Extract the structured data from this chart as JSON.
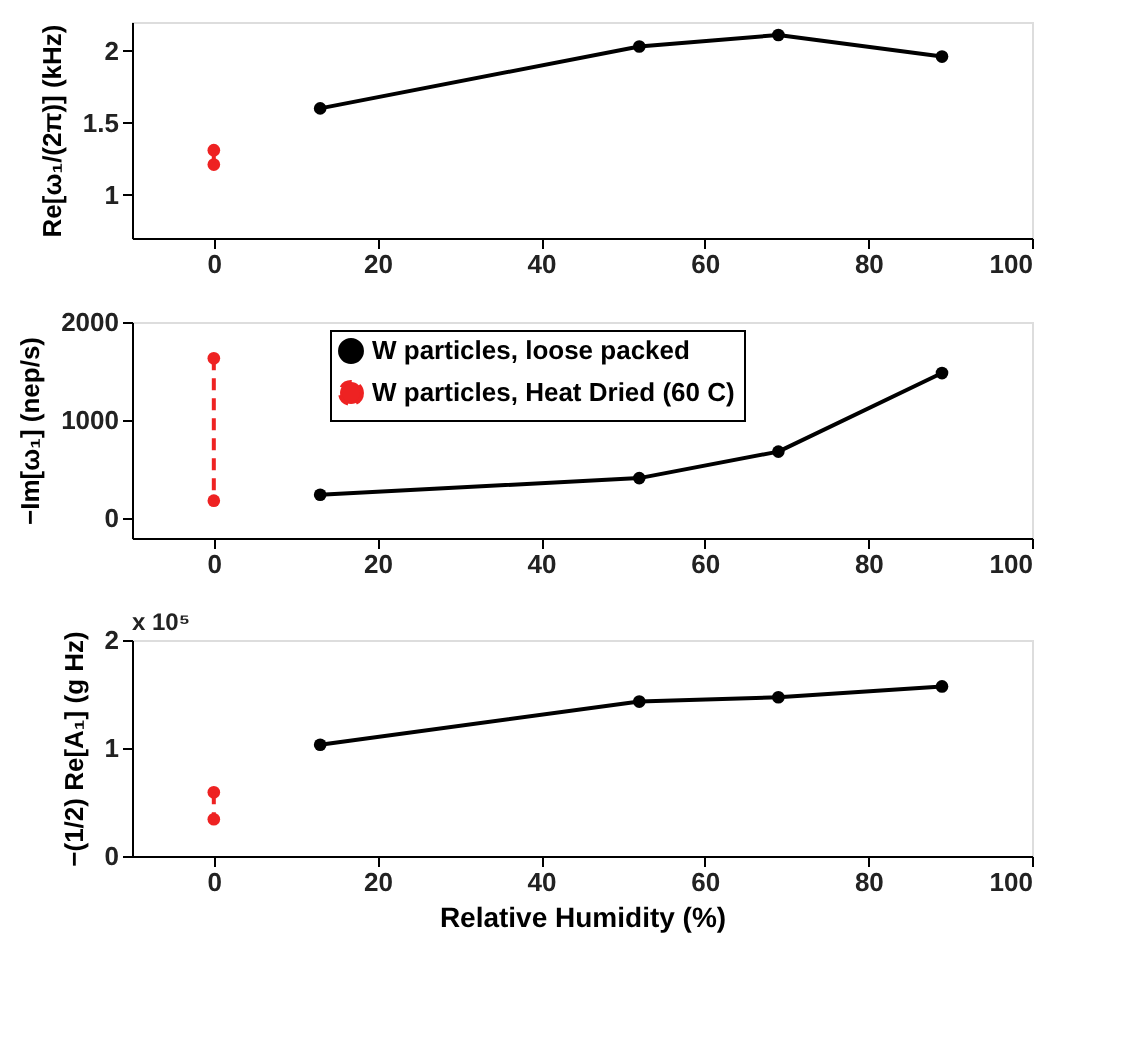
{
  "chart_data": [
    {
      "type": "line",
      "ylabel": "Re[ω₁/(2π)] (kHz)",
      "xlim": [
        -10,
        100
      ],
      "xticks": [
        0,
        20,
        40,
        60,
        80,
        100
      ],
      "ylim": [
        0.7,
        2.2
      ],
      "yticks": [
        1,
        1.5,
        2
      ],
      "grid": false,
      "legend": false,
      "marker": "circle",
      "series": [
        {
          "color": "#000000",
          "line_style": "solid",
          "x": [
            13,
            52,
            69,
            89
          ],
          "values": [
            1.6,
            2.03,
            2.11,
            1.96
          ]
        },
        {
          "color": "#ee2222",
          "line_style": "dashed",
          "x": [
            0,
            0
          ],
          "values": [
            1.31,
            1.21
          ]
        }
      ]
    },
    {
      "type": "line",
      "ylabel": "−Im[ω₁] (nep/s)",
      "xlim": [
        -10,
        100
      ],
      "xticks": [
        0,
        20,
        40,
        60,
        80,
        100
      ],
      "ylim": [
        -200,
        2000
      ],
      "yticks": [
        0,
        1000,
        2000
      ],
      "grid": false,
      "legend": "top",
      "marker": "circle",
      "series": [
        {
          "name": "W particles, loose packed",
          "color": "#000000",
          "line_style": "solid",
          "x": [
            13,
            52,
            69,
            89
          ],
          "values": [
            240,
            410,
            680,
            1480
          ]
        },
        {
          "name": "W particles, Heat Dried (60 C)",
          "color": "#ee2222",
          "line_style": "dashed",
          "x": [
            0,
            0
          ],
          "values": [
            1630,
            180
          ]
        }
      ]
    },
    {
      "type": "line",
      "ylabel": "−(1/2) Re[A₁] (g Hz)",
      "xlabel": "Relative Humidity (%)",
      "annotations": [
        "x 10⁵"
      ],
      "xlim": [
        -10,
        100
      ],
      "xticks": [
        0,
        20,
        40,
        60,
        80,
        100
      ],
      "ylim": [
        0,
        2
      ],
      "yticks": [
        0,
        1,
        2
      ],
      "grid": false,
      "legend": false,
      "marker": "circle",
      "series": [
        {
          "color": "#000000",
          "line_style": "solid",
          "x": [
            13,
            52,
            69,
            89
          ],
          "values": [
            1.03,
            1.43,
            1.47,
            1.57
          ]
        },
        {
          "color": "#ee2222",
          "line_style": "dashed",
          "x": [
            0,
            0
          ],
          "values": [
            0.59,
            0.34
          ]
        }
      ]
    }
  ]
}
